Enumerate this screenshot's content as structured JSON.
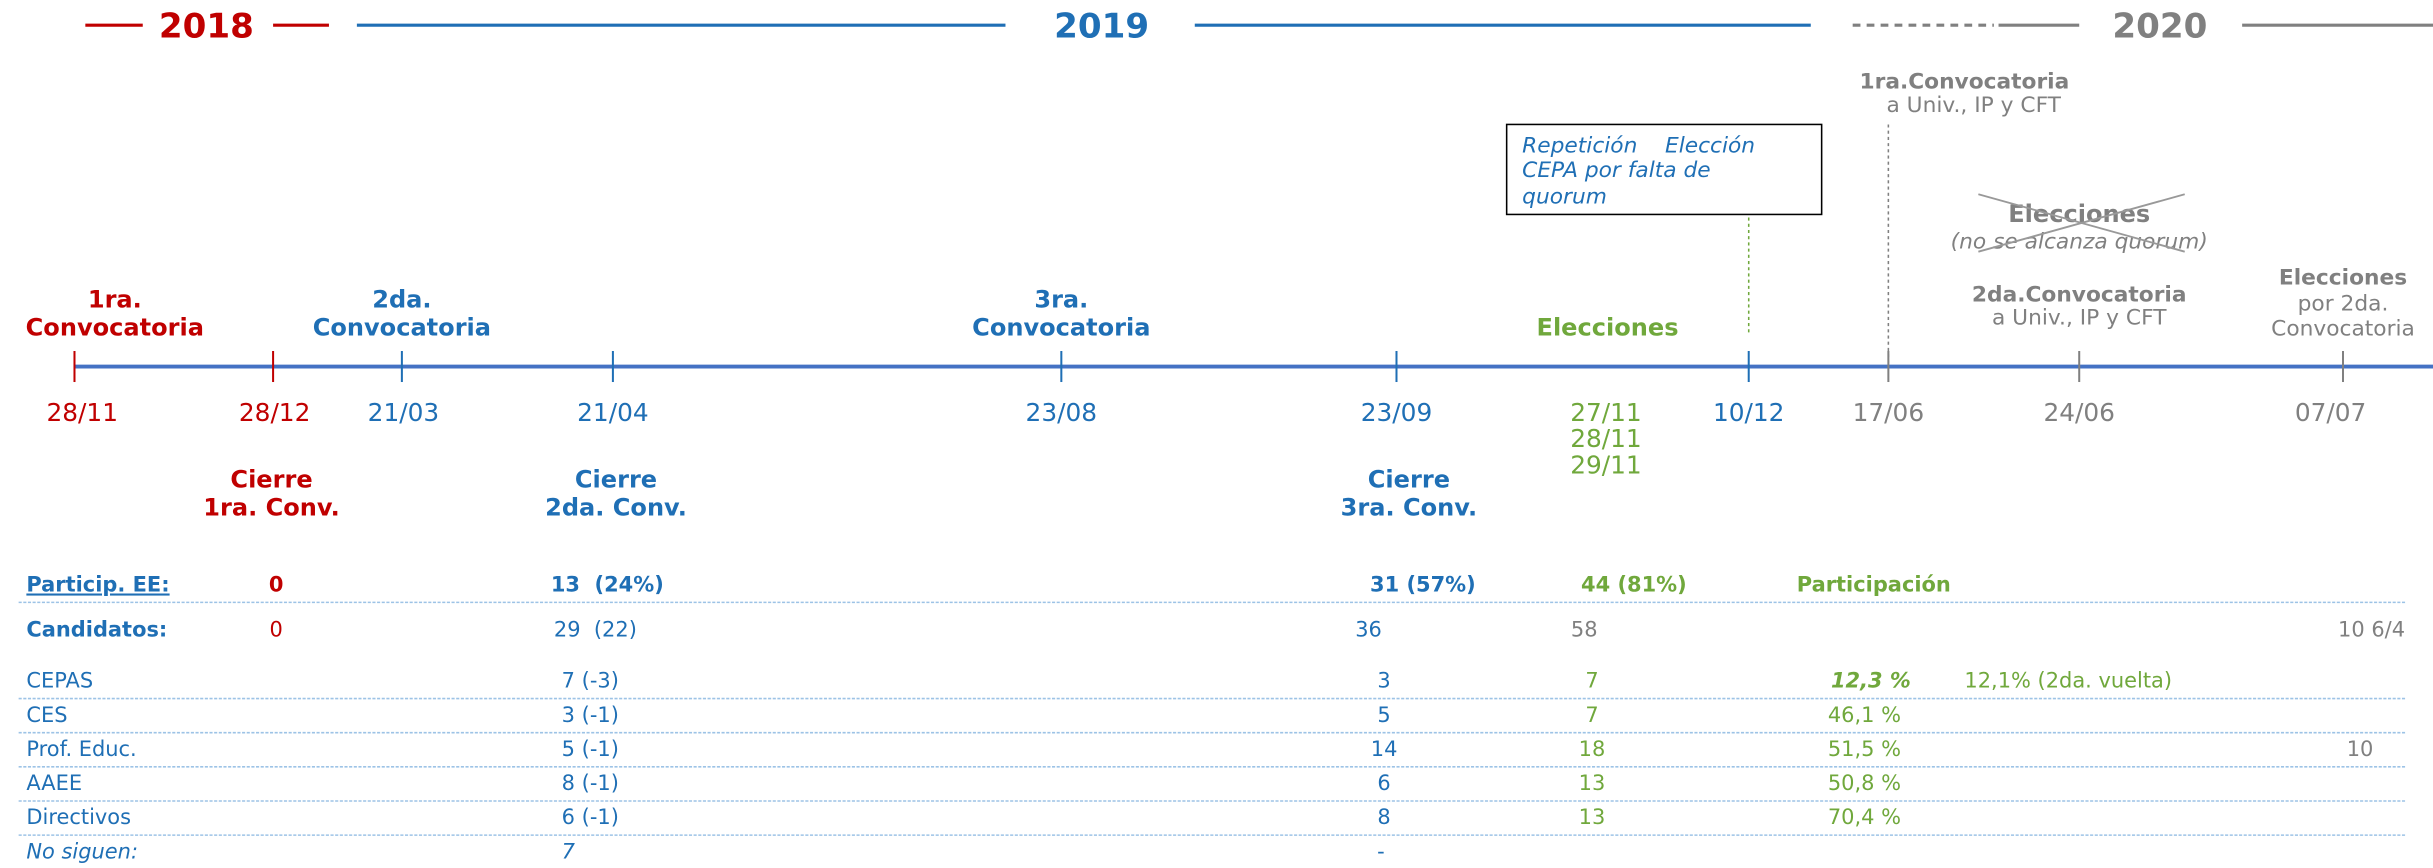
{
  "years": [
    "2018",
    "2019",
    "2020"
  ],
  "events": {
    "first_call": [
      "1ra.",
      "Convocatoria"
    ],
    "second_call": [
      "2da.",
      "Convocatoria"
    ],
    "third_call": [
      "3ra.",
      "Convocatoria"
    ],
    "elections": "Elecciones",
    "note_box": [
      "Repetición    Elección",
      "CEPA por falta de",
      "quorum"
    ],
    "univ_first_call": [
      "1ra.Convocatoria",
      "a Univ., IP y CFT"
    ],
    "cancelled_elections": [
      "Elecciones",
      "(no se alcanza quorum)"
    ],
    "univ_second_call": [
      "2da.Convocatoria",
      "a Univ., IP y CFT"
    ],
    "second_call_elections": [
      "Elecciones",
      "por 2da.",
      "Convocatoria"
    ]
  },
  "dates": [
    "28/11",
    "28/12",
    "21/03",
    "21/04",
    "23/08",
    "23/09",
    "27/11",
    "28/11",
    "29/11",
    "10/12",
    "17/06",
    "24/06",
    "07/07"
  ],
  "closures": [
    [
      "Cierre",
      "1ra. Conv."
    ],
    [
      "Cierre",
      "2da. Conv."
    ],
    [
      "Cierre",
      "3ra. Conv."
    ]
  ],
  "table": {
    "rows": [
      {
        "label": "Particip. EE:",
        "values": [
          "0",
          "13  (24%)",
          "31 (57%)",
          "44 (81%)",
          "Participación"
        ]
      },
      {
        "label": "Candidatos:",
        "values": [
          "0",
          "29  (22)",
          "36",
          "58",
          "10 6/4"
        ]
      },
      {
        "label": "CEPAS",
        "values": [
          "7 (-3)",
          "3",
          "7",
          "12,3 %",
          "12,1% (2da. vuelta)"
        ]
      },
      {
        "label": "CES",
        "values": [
          "3 (-1)",
          "5",
          "7",
          "46,1 %"
        ]
      },
      {
        "label": "Prof. Educ.",
        "values": [
          "5 (-1)",
          "14",
          "18",
          "51,5 %",
          "10"
        ]
      },
      {
        "label": "AAEE",
        "values": [
          "8 (-1)",
          "6",
          "13",
          "50,8 %"
        ]
      },
      {
        "label": "Directivos",
        "values": [
          "6 (-1)",
          "8",
          "13",
          "70,4 %"
        ]
      },
      {
        "label": "No siguen:",
        "values": [
          "7",
          "-"
        ]
      }
    ]
  }
}
